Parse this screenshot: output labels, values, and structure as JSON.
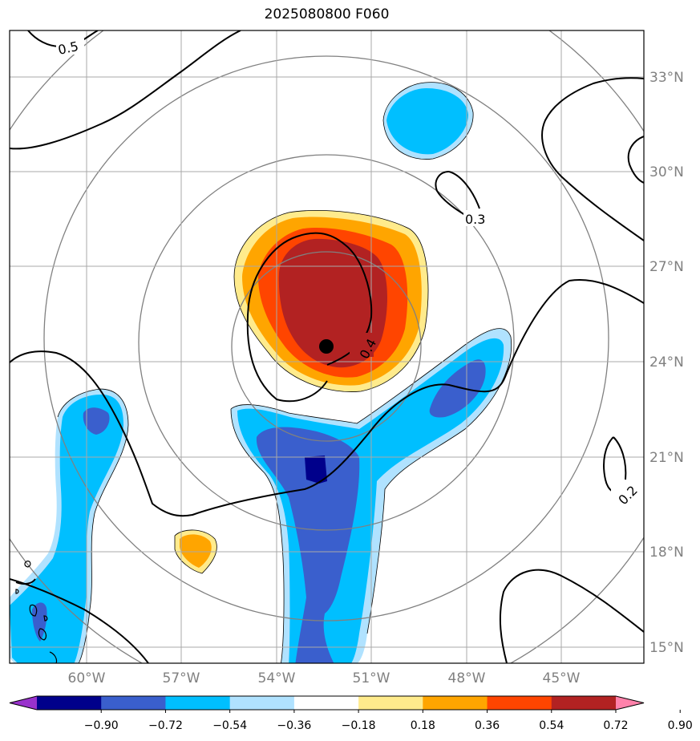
{
  "title": "2025080800 F060",
  "map": {
    "lat_labels": [
      "33°N",
      "30°N",
      "27°N",
      "24°N",
      "21°N",
      "18°N",
      "15°N"
    ],
    "lon_labels": [
      "60°W",
      "57°W",
      "54°W",
      "51°W",
      "48°W",
      "45°W"
    ],
    "contour_labels": [
      "0.5",
      "0.3",
      "0.4",
      "0.2"
    ],
    "center_marker": "storm-center"
  },
  "colorbar": {
    "ticks": [
      "−0.90",
      "−0.72",
      "−0.54",
      "−0.36",
      "−0.18",
      "0.18",
      "0.36",
      "0.54",
      "0.72",
      "0.90"
    ],
    "colors": [
      "#9932cc",
      "#00008b",
      "#3a5fcd",
      "#00bfff",
      "#b0e2ff",
      "#ffffff",
      "#ffeb8c",
      "#ffa500",
      "#ff4500",
      "#b22222",
      "#ff82ab"
    ]
  }
}
